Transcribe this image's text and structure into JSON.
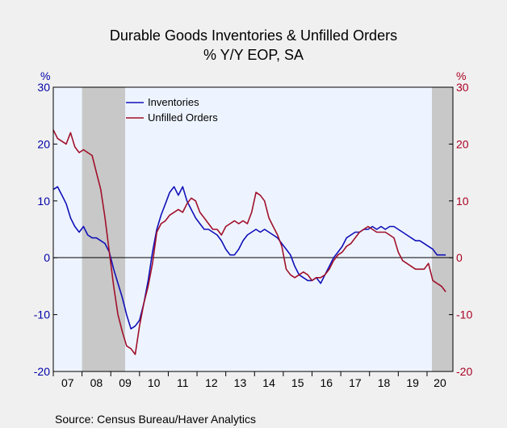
{
  "chart_data": {
    "type": "line",
    "title": "Durable Goods Inventories & Unfilled Orders",
    "subtitle": "% Y/Y EOP, SA",
    "ylabel_left": "%",
    "ylabel_right": "%",
    "ylim": [
      -20,
      30
    ],
    "yticks": [
      -20,
      -10,
      0,
      10,
      20,
      30
    ],
    "xlim": [
      2007.0,
      2020.9
    ],
    "year_labels": [
      "07",
      "08",
      "09",
      "10",
      "11",
      "12",
      "13",
      "14",
      "15",
      "16",
      "17",
      "18",
      "19",
      "20"
    ],
    "recessions": [
      [
        2008.0,
        2009.5
      ],
      [
        2020.17,
        2020.9
      ]
    ],
    "grid": false,
    "legend_position": "top-left",
    "source": "Source:  Census Bureau/Haver Analytics",
    "colors": {
      "left_axis": "#0000aa",
      "right_axis": "#aa0022",
      "plot_bg": "#eef4ff",
      "recession": "#c8c8c8"
    },
    "series": [
      {
        "name": "Inventories",
        "color": "#1010b8",
        "x": [
          2007.0,
          2007.15,
          2007.3,
          2007.45,
          2007.6,
          2007.75,
          2007.9,
          2008.05,
          2008.2,
          2008.35,
          2008.5,
          2008.65,
          2008.8,
          2008.95,
          2009.1,
          2009.25,
          2009.4,
          2009.55,
          2009.7,
          2009.85,
          2010.0,
          2010.15,
          2010.3,
          2010.45,
          2010.6,
          2010.75,
          2010.9,
          2011.05,
          2011.2,
          2011.35,
          2011.5,
          2011.65,
          2011.8,
          2011.95,
          2012.1,
          2012.25,
          2012.4,
          2012.55,
          2012.7,
          2012.85,
          2013.0,
          2013.15,
          2013.3,
          2013.45,
          2013.6,
          2013.75,
          2013.9,
          2014.05,
          2014.2,
          2014.35,
          2014.5,
          2014.65,
          2014.8,
          2014.95,
          2015.1,
          2015.25,
          2015.4,
          2015.55,
          2015.7,
          2015.85,
          2016.0,
          2016.15,
          2016.3,
          2016.45,
          2016.6,
          2016.75,
          2016.9,
          2017.05,
          2017.2,
          2017.35,
          2017.5,
          2017.65,
          2017.8,
          2017.95,
          2018.1,
          2018.25,
          2018.4,
          2018.55,
          2018.7,
          2018.85,
          2019.0,
          2019.15,
          2019.3,
          2019.45,
          2019.6,
          2019.75,
          2019.9,
          2020.05,
          2020.2,
          2020.35,
          2020.5,
          2020.65
        ],
        "values": [
          12.0,
          12.5,
          11.0,
          9.5,
          7.0,
          5.5,
          4.5,
          5.5,
          4.0,
          3.5,
          3.5,
          3.0,
          2.5,
          1.0,
          -2.0,
          -4.5,
          -7.0,
          -10.0,
          -12.5,
          -12.0,
          -11.0,
          -8.0,
          -4.0,
          1.0,
          5.0,
          7.5,
          9.5,
          11.5,
          12.5,
          11.0,
          12.5,
          10.0,
          8.5,
          7.0,
          6.0,
          5.0,
          5.0,
          4.5,
          4.0,
          3.0,
          1.5,
          0.5,
          0.5,
          1.5,
          3.0,
          4.0,
          4.5,
          5.0,
          4.5,
          5.0,
          4.5,
          4.0,
          3.5,
          2.5,
          1.5,
          0.5,
          -1.5,
          -3.0,
          -3.5,
          -4.0,
          -4.0,
          -3.5,
          -4.5,
          -3.0,
          -1.5,
          0.0,
          1.0,
          2.0,
          3.5,
          4.0,
          4.5,
          4.5,
          5.0,
          5.0,
          5.5,
          5.0,
          5.5,
          5.0,
          5.5,
          5.5,
          5.0,
          4.5,
          4.0,
          3.5,
          3.0,
          3.0,
          2.5,
          2.0,
          1.5,
          0.5,
          0.5,
          0.5
        ]
      },
      {
        "name": "Unfilled Orders",
        "color": "#a0102a",
        "x": [
          2007.0,
          2007.15,
          2007.3,
          2007.45,
          2007.6,
          2007.75,
          2007.9,
          2008.05,
          2008.2,
          2008.35,
          2008.5,
          2008.65,
          2008.8,
          2008.95,
          2009.1,
          2009.25,
          2009.4,
          2009.55,
          2009.7,
          2009.85,
          2010.0,
          2010.15,
          2010.3,
          2010.45,
          2010.6,
          2010.75,
          2010.9,
          2011.05,
          2011.2,
          2011.35,
          2011.5,
          2011.65,
          2011.8,
          2011.95,
          2012.1,
          2012.25,
          2012.4,
          2012.55,
          2012.7,
          2012.85,
          2013.0,
          2013.15,
          2013.3,
          2013.45,
          2013.6,
          2013.75,
          2013.9,
          2014.05,
          2014.2,
          2014.35,
          2014.5,
          2014.65,
          2014.8,
          2014.95,
          2015.1,
          2015.25,
          2015.4,
          2015.55,
          2015.7,
          2015.85,
          2016.0,
          2016.15,
          2016.3,
          2016.45,
          2016.6,
          2016.75,
          2016.9,
          2017.05,
          2017.2,
          2017.35,
          2017.5,
          2017.65,
          2017.8,
          2017.95,
          2018.1,
          2018.25,
          2018.4,
          2018.55,
          2018.7,
          2018.85,
          2019.0,
          2019.15,
          2019.3,
          2019.45,
          2019.6,
          2019.75,
          2019.9,
          2020.05,
          2020.2,
          2020.35,
          2020.5,
          2020.65
        ],
        "values": [
          22.5,
          21.0,
          20.5,
          20.0,
          22.0,
          19.5,
          18.5,
          19.0,
          18.5,
          18.0,
          15.0,
          12.0,
          7.0,
          1.0,
          -5.0,
          -10.0,
          -13.0,
          -15.5,
          -16.0,
          -17.0,
          -12.0,
          -8.0,
          -5.0,
          -1.0,
          4.5,
          6.0,
          6.5,
          7.5,
          8.0,
          8.5,
          8.0,
          9.5,
          10.5,
          10.0,
          8.0,
          7.0,
          6.0,
          5.0,
          5.0,
          4.0,
          5.5,
          6.0,
          6.5,
          6.0,
          6.5,
          6.0,
          8.0,
          11.5,
          11.0,
          10.0,
          7.0,
          5.5,
          4.0,
          2.0,
          -2.0,
          -3.0,
          -3.5,
          -3.0,
          -2.5,
          -3.0,
          -4.0,
          -3.5,
          -3.5,
          -3.0,
          -2.0,
          -0.5,
          0.5,
          1.0,
          2.0,
          2.5,
          3.5,
          4.5,
          5.0,
          5.5,
          5.0,
          4.5,
          4.5,
          4.5,
          4.0,
          3.5,
          1.0,
          -0.5,
          -1.0,
          -1.5,
          -2.0,
          -2.0,
          -2.0,
          -1.0,
          -4.0,
          -4.5,
          -5.0,
          -6.0
        ]
      }
    ]
  }
}
